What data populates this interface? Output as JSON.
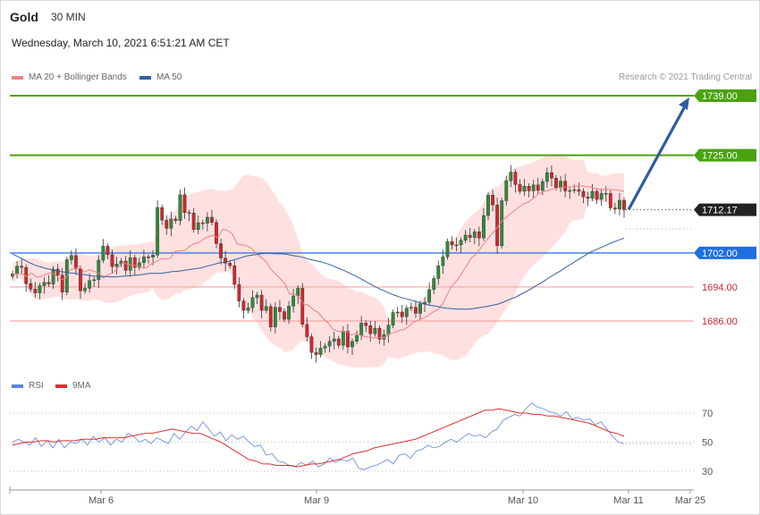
{
  "header": {
    "symbol": "Gold",
    "timeframe": "30 MIN",
    "datetime": "Wednesday, March 10, 2021 6:51:21 AM CET"
  },
  "legend": {
    "ma20_label": "MA 20 + Bollinger Bands",
    "ma50_label": "MA 50",
    "credit": "Research © 2021 Trading Central",
    "rsi_label": "RSI",
    "rsi_ma_label": "9MA"
  },
  "colors": {
    "ma20": "#f08080",
    "ma50": "#34609e",
    "bollinger_fill": "#ffd6d6",
    "support_line": "#3a78e0",
    "target_line": "#4aa30e",
    "pivot_line": "#f2a6a6",
    "arrow": "#2f5d9e",
    "up_candle": "#2e8b3a",
    "down_candle": "#d1262d",
    "rsi": "#5b84e0",
    "rsi_ma": "#e03030"
  },
  "chart_data": [
    {
      "type": "line",
      "title": "Gold 30 MIN",
      "ylim": [
        1670,
        1743
      ],
      "x_ticks": [
        "Mar 6",
        "Mar 9",
        "Mar 10",
        "Mar 11",
        "Mar 25"
      ],
      "levels": [
        {
          "value": 1739.0,
          "label": "1739.00",
          "role": "target"
        },
        {
          "value": 1725.0,
          "label": "1725.00",
          "role": "target"
        },
        {
          "value": 1712.17,
          "label": "1712.17",
          "role": "last_price"
        },
        {
          "value": 1702.0,
          "label": "1702.00",
          "role": "pivot"
        },
        {
          "value": 1694.0,
          "label": "1694.00",
          "role": "support"
        },
        {
          "value": 1686.0,
          "label": "1686.00",
          "role": "support"
        }
      ],
      "close": [
        1697.1,
        1698.9,
        1698.6,
        1694.8,
        1693.5,
        1692.6,
        1694.3,
        1695.1,
        1694.7,
        1698.2,
        1696.8,
        1692.8,
        1700.4,
        1701.4,
        1698.3,
        1693.1,
        1693.7,
        1695.5,
        1695.7,
        1700.3,
        1703.6,
        1701.6,
        1698.8,
        1699.4,
        1700.1,
        1697.9,
        1700.9,
        1698.6,
        1699.7,
        1701.1,
        1701.0,
        1701.5,
        1712.7,
        1709.7,
        1707.8,
        1710.0,
        1709.6,
        1715.7,
        1711.5,
        1711.4,
        1707.5,
        1709.1,
        1709.0,
        1710.4,
        1709.2,
        1704.2,
        1700.8,
        1699.6,
        1699.0,
        1694.6,
        1690.7,
        1688.5,
        1689.1,
        1691.5,
        1692.1,
        1688.5,
        1689.4,
        1684.6,
        1689.2,
        1688.2,
        1686.4,
        1689.5,
        1691.9,
        1693.7,
        1685.2,
        1682.3,
        1678.6,
        1678.1,
        1679.6,
        1680.1,
        1681.2,
        1681.8,
        1680.3,
        1683.6,
        1679.9,
        1681.2,
        1682.6,
        1685.5,
        1684.9,
        1683.0,
        1684.3,
        1681.7,
        1682.8,
        1685.0,
        1688.0,
        1688.1,
        1687.0,
        1689.0,
        1689.2,
        1687.8,
        1690.0,
        1690.4,
        1693.4,
        1696.0,
        1699.0,
        1701.1,
        1704.7,
        1703.9,
        1703.9,
        1705.0,
        1706.2,
        1705.6,
        1707.0,
        1705.5,
        1710.8,
        1715.6,
        1713.3,
        1703.7,
        1714.3,
        1719.0,
        1721.0,
        1718.1,
        1716.5,
        1717.7,
        1716.6,
        1718.0,
        1716.7,
        1718.8,
        1720.9,
        1719.6,
        1717.4,
        1718.9,
        1716.6,
        1716.7,
        1716.9,
        1716.5,
        1715.2,
        1714.9,
        1716.5,
        1714.6,
        1716.0,
        1716.0,
        1712.6,
        1712.3,
        1714.4,
        1712.2
      ],
      "ma20": [
        1696.9,
        1697.1,
        1697.1,
        1696.5,
        1697.3,
        1696.3,
        1696.5,
        1697.0,
        1697.3,
        1696.8,
        1695.8,
        1695.9,
        1698.0,
        1698.3,
        1698.9,
        1697.5,
        1698.1,
        1697.7,
        1697.3,
        1696.1,
        1696.9,
        1697.3,
        1698.5,
        1699.6,
        1699.4,
        1699.2,
        1699.0,
        1698.6,
        1698.5,
        1699.4,
        1699.9,
        1700.6,
        1700.6,
        1700.7,
        1702.3,
        1702.5,
        1702.6,
        1703.5,
        1704.2,
        1704.4,
        1705.3,
        1705.8,
        1706.2,
        1705.6,
        1707.6,
        1707.3,
        1706.5,
        1704.1,
        1703.9,
        1703.7,
        1703.1,
        1701.9,
        1701.0,
        1700.1,
        1698.3,
        1697.1,
        1696.0,
        1694.8,
        1692.3,
        1692.4,
        1691.6,
        1689.9,
        1689.7,
        1688.6,
        1688.0,
        1686.6,
        1685.6,
        1684.1,
        1683.6,
        1683.5,
        1683.5,
        1682.7,
        1683.2,
        1682.6,
        1682.3,
        1682.1,
        1682.0,
        1682.1,
        1682.1,
        1683.1,
        1683.3,
        1683.8,
        1684.0,
        1684.8,
        1685.8,
        1686.2,
        1686.7,
        1687.3,
        1688.1,
        1688.7,
        1690.0,
        1692.3,
        1694.3,
        1695.5,
        1697.2,
        1698.9,
        1700.8,
        1701.7,
        1703.2,
        1704.7,
        1706.1,
        1707.3,
        1708.9,
        1710.1,
        1711.1,
        1711.9,
        1712.8,
        1713.6,
        1714.0,
        1714.9,
        1715.8,
        1716.4,
        1716.7,
        1717.0,
        1717.3,
        1717.4,
        1717.5,
        1717.6,
        1717.7,
        1717.8,
        1717.6,
        1717.5,
        1717.2,
        1716.9,
        1716.9,
        1716.9,
        1716.9,
        1716.7,
        1716.5
      ],
      "ma50": [
        1701.8,
        1701.1,
        1700.4,
        1699.7,
        1699.1,
        1698.7,
        1698.3,
        1698.0,
        1697.7,
        1697.5,
        1697.3,
        1697.2,
        1697.0,
        1696.8,
        1696.6,
        1696.5,
        1696.5,
        1696.4,
        1696.4,
        1696.5,
        1696.6,
        1696.7,
        1696.8,
        1697.0,
        1697.2,
        1697.2,
        1697.2,
        1697.4,
        1697.6,
        1697.7,
        1697.9,
        1698.1,
        1698.3,
        1698.5,
        1698.9,
        1699.2,
        1699.6,
        1699.8,
        1700.1,
        1700.5,
        1700.9,
        1701.3,
        1701.5,
        1701.7,
        1701.9,
        1701.9,
        1701.8,
        1701.8,
        1701.7,
        1701.4,
        1701.2,
        1700.9,
        1700.5,
        1700.2,
        1699.9,
        1699.5,
        1699.0,
        1698.4,
        1697.9,
        1697.2,
        1696.6,
        1695.9,
        1695.1,
        1694.4,
        1693.7,
        1693.1,
        1692.5,
        1692.0,
        1691.5,
        1691.2,
        1690.8,
        1690.4,
        1690.0,
        1689.7,
        1689.5,
        1689.2,
        1689.0,
        1688.9,
        1688.8,
        1688.8,
        1688.8,
        1689.0,
        1689.2,
        1689.4,
        1689.7,
        1690.0,
        1690.5,
        1691.1,
        1691.6,
        1692.3,
        1693.0,
        1693.8,
        1694.6,
        1695.4,
        1696.3,
        1697.1,
        1697.9,
        1698.8,
        1699.6,
        1700.5,
        1701.3,
        1702.1,
        1702.7,
        1703.3,
        1703.9,
        1704.5,
        1705.0,
        1705.5
      ],
      "forecast": {
        "from": 1712.2,
        "to": 1739.0
      }
    },
    {
      "type": "line",
      "title": "RSI",
      "ylim": [
        20,
        80
      ],
      "y_ticks": [
        "70",
        "50",
        "30"
      ],
      "series": [
        {
          "name": "RSI",
          "values": [
            50,
            52,
            50,
            48,
            53,
            47,
            51,
            46,
            52,
            46,
            50,
            49,
            52,
            48,
            54,
            50,
            53,
            48,
            52,
            50,
            56,
            54,
            50,
            52,
            49,
            53,
            51,
            49,
            56,
            52,
            57,
            61,
            58,
            64,
            59,
            54,
            57,
            51,
            55,
            52,
            54,
            50,
            47,
            48,
            41,
            42,
            37,
            36,
            34,
            33,
            36,
            34,
            37,
            33,
            35,
            39,
            36,
            38,
            37,
            39,
            32,
            31,
            33,
            34,
            36,
            38,
            35,
            41,
            42,
            39,
            44,
            45,
            48,
            46,
            47,
            50,
            52,
            50,
            53,
            56,
            54,
            55,
            53,
            57,
            59,
            65,
            67,
            69,
            68,
            73,
            77,
            74,
            73,
            71,
            70,
            68,
            71,
            66,
            67,
            65,
            66,
            62,
            64,
            59,
            54,
            50,
            49
          ]
        },
        {
          "name": "9MA",
          "values": [
            48,
            49,
            50,
            50,
            51,
            51,
            50,
            51,
            51,
            51,
            52,
            52,
            52,
            53,
            53,
            53,
            53,
            54,
            55,
            56,
            56,
            57,
            58,
            59,
            58,
            57,
            56,
            56,
            54,
            52,
            50,
            47,
            44,
            41,
            38,
            37,
            35,
            35,
            34,
            34,
            34,
            33,
            34,
            35,
            35,
            36,
            37,
            38,
            40,
            42,
            43,
            44,
            46,
            47,
            48,
            49,
            50,
            51,
            52,
            54,
            56,
            58,
            60,
            62,
            64,
            66,
            68,
            70,
            72,
            72,
            73,
            72,
            71,
            70,
            70,
            69,
            69,
            68,
            68,
            67,
            66,
            65,
            64,
            63,
            61,
            59,
            57,
            56,
            54
          ]
        }
      ]
    }
  ]
}
